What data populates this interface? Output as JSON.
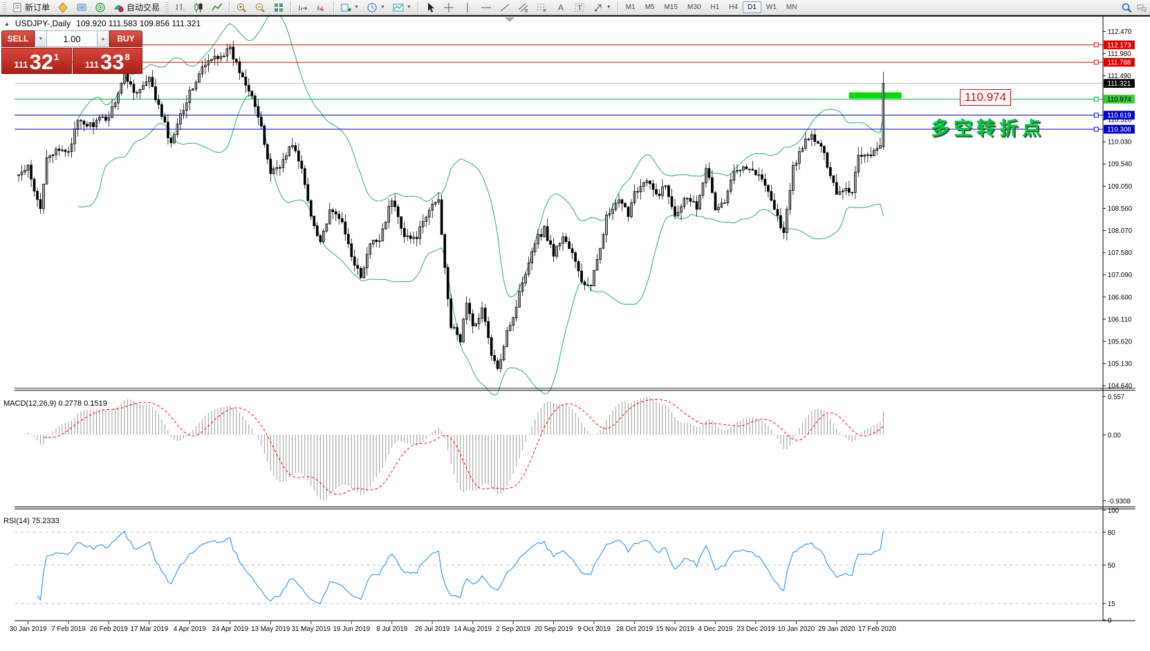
{
  "toolbar": {
    "new_order_label": "新订单",
    "auto_trading_label": "自动交易",
    "timeframes": [
      "M1",
      "M5",
      "M15",
      "M30",
      "H1",
      "H4",
      "D1",
      "W1",
      "MN"
    ],
    "active_timeframe": "D1"
  },
  "chart_header": {
    "symbol": "USDJPY-,Daily",
    "ohlc_text": "109.920 111.583 109.856 111.321"
  },
  "trade_panel": {
    "sell_label": "SELL",
    "buy_label": "BUY",
    "volume": "1.00",
    "sell_price_prefix": "111",
    "sell_price_main": "32",
    "sell_price_sup": "1",
    "buy_price_prefix": "111",
    "buy_price_main": "33",
    "buy_price_sup": "8"
  },
  "annotations": {
    "price_callout": "110.974",
    "turning_point": "多空转折点"
  },
  "indicators": {
    "macd_label": "MACD(12,26,9) 0.2778 0.1519",
    "rsi_label": "RSI(14) 75.2333"
  },
  "chart_data": {
    "type": "candlestick",
    "symbol": "USDJPY-",
    "timeframe": "Daily",
    "last_candle": {
      "open": 109.92,
      "high": 111.583,
      "low": 109.856,
      "close": 111.321
    },
    "price_axis": {
      "ticks": [
        112.47,
        111.98,
        111.49,
        110.52,
        110.03,
        109.54,
        109.05,
        108.56,
        108.07,
        107.58,
        107.09,
        106.6,
        106.11,
        105.62,
        105.13,
        104.64
      ],
      "top_price": 112.47,
      "bottom_price": 104.64
    },
    "price_levels": [
      {
        "value": 112.173,
        "line": "#e00000",
        "bg": "#e00000",
        "fg": "#ffffff",
        "handle": true
      },
      {
        "value": 111.788,
        "line": "#e00000",
        "bg": "#e00000",
        "fg": "#ffffff",
        "handle": true
      },
      {
        "value": 111.321,
        "line": "#b8b8b8",
        "bg": "#000000",
        "fg": "#ffffff",
        "handle": false
      },
      {
        "value": 110.974,
        "line": "#00b050",
        "bg": "#33cc33",
        "fg": "#000000",
        "handle": true
      },
      {
        "value": 110.619,
        "line": "#0000cc",
        "bg": "#0000cc",
        "fg": "#ffffff",
        "handle": true
      },
      {
        "value": 110.308,
        "line": "#0000cc",
        "bg": "#0000cc",
        "fg": "#ffffff",
        "handle": true
      }
    ],
    "highlight_bar": {
      "price": 110.974,
      "color": "#00dd00"
    },
    "dates": [
      "30 Jan 2019",
      "7 Feb 2019",
      "26 Feb 2019",
      "17 Mar 2019",
      "4 Apr 2019",
      "24 Apr 2019",
      "13 May 2019",
      "31 May 2019",
      "19 Jun 2019",
      "8 Jul 2019",
      "26 Jul 2019",
      "14 Aug 2019",
      "2 Sep 2019",
      "20 Sep 2019",
      "9 Oct 2019",
      "28 Oct 2019",
      "15 Nov 2019",
      "4 Dec 2019",
      "23 Dec 2019",
      "10 Jan 2020",
      "29 Jan 2020",
      "17 Feb 2020"
    ],
    "close_anchors": [
      [
        0,
        109.3
      ],
      [
        3,
        109.45
      ],
      [
        5,
        108.9
      ],
      [
        7,
        108.55
      ],
      [
        9,
        109.75
      ],
      [
        16,
        109.85
      ],
      [
        19,
        110.45
      ],
      [
        23,
        110.4
      ],
      [
        29,
        110.6
      ],
      [
        34,
        111.5
      ],
      [
        38,
        111.1
      ],
      [
        42,
        111.4
      ],
      [
        47,
        110.4
      ],
      [
        49,
        109.95
      ],
      [
        51,
        110.5
      ],
      [
        55,
        111.1
      ],
      [
        59,
        111.65
      ],
      [
        63,
        111.9
      ],
      [
        68,
        112.05
      ],
      [
        71,
        111.6
      ],
      [
        75,
        111.1
      ],
      [
        78,
        110.3
      ],
      [
        81,
        109.35
      ],
      [
        85,
        109.6
      ],
      [
        88,
        110.0
      ],
      [
        91,
        109.4
      ],
      [
        94,
        108.4
      ],
      [
        97,
        107.85
      ],
      [
        100,
        108.45
      ],
      [
        103,
        108.4
      ],
      [
        107,
        107.55
      ],
      [
        110,
        107.0
      ],
      [
        113,
        107.75
      ],
      [
        116,
        107.9
      ],
      [
        120,
        108.75
      ],
      [
        124,
        108.0
      ],
      [
        127,
        107.85
      ],
      [
        130,
        108.2
      ],
      [
        133,
        108.65
      ],
      [
        135,
        108.75
      ],
      [
        137,
        107.3
      ],
      [
        139,
        105.95
      ],
      [
        142,
        105.65
      ],
      [
        144,
        106.5
      ],
      [
        146,
        105.9
      ],
      [
        149,
        106.35
      ],
      [
        152,
        105.35
      ],
      [
        154,
        104.95
      ],
      [
        157,
        105.9
      ],
      [
        159,
        106.15
      ],
      [
        162,
        106.95
      ],
      [
        166,
        107.85
      ],
      [
        169,
        108.1
      ],
      [
        172,
        107.55
      ],
      [
        175,
        107.95
      ],
      [
        178,
        107.55
      ],
      [
        181,
        106.95
      ],
      [
        184,
        106.8
      ],
      [
        186,
        107.45
      ],
      [
        189,
        108.35
      ],
      [
        193,
        108.7
      ],
      [
        196,
        108.45
      ],
      [
        198,
        108.95
      ],
      [
        202,
        109.15
      ],
      [
        205,
        108.85
      ],
      [
        208,
        109.05
      ],
      [
        211,
        108.45
      ],
      [
        215,
        108.85
      ],
      [
        218,
        108.6
      ],
      [
        221,
        109.5
      ],
      [
        224,
        108.55
      ],
      [
        227,
        108.7
      ],
      [
        230,
        109.35
      ],
      [
        233,
        109.55
      ],
      [
        237,
        109.35
      ],
      [
        241,
        109.0
      ],
      [
        243,
        108.55
      ],
      [
        246,
        108.0
      ],
      [
        249,
        109.45
      ],
      [
        252,
        109.95
      ],
      [
        255,
        110.15
      ],
      [
        258,
        109.9
      ],
      [
        261,
        109.35
      ],
      [
        263,
        108.9
      ],
      [
        265,
        109.0
      ],
      [
        268,
        108.95
      ],
      [
        270,
        109.75
      ],
      [
        273,
        109.75
      ],
      [
        276,
        109.85
      ],
      [
        277,
        109.9
      ],
      [
        278,
        111.321
      ]
    ],
    "bollinger": {
      "period": 20,
      "deviation": 2,
      "color": "#3CB371"
    },
    "macd": {
      "fast": 12,
      "slow": 26,
      "signal": 9,
      "value": 0.2778,
      "signal_value": 0.1519,
      "axis_ticks": [
        "0.557",
        "0.00",
        "-0.9308"
      ],
      "hist_color": "#9a9a9a",
      "signal_color": "#ff0000"
    },
    "rsi": {
      "period": 14,
      "value": 75.2333,
      "axis_ticks": [
        100,
        80,
        50,
        15,
        0
      ],
      "level_lines": [
        80,
        50,
        15
      ],
      "color": "#3a96e8"
    }
  }
}
